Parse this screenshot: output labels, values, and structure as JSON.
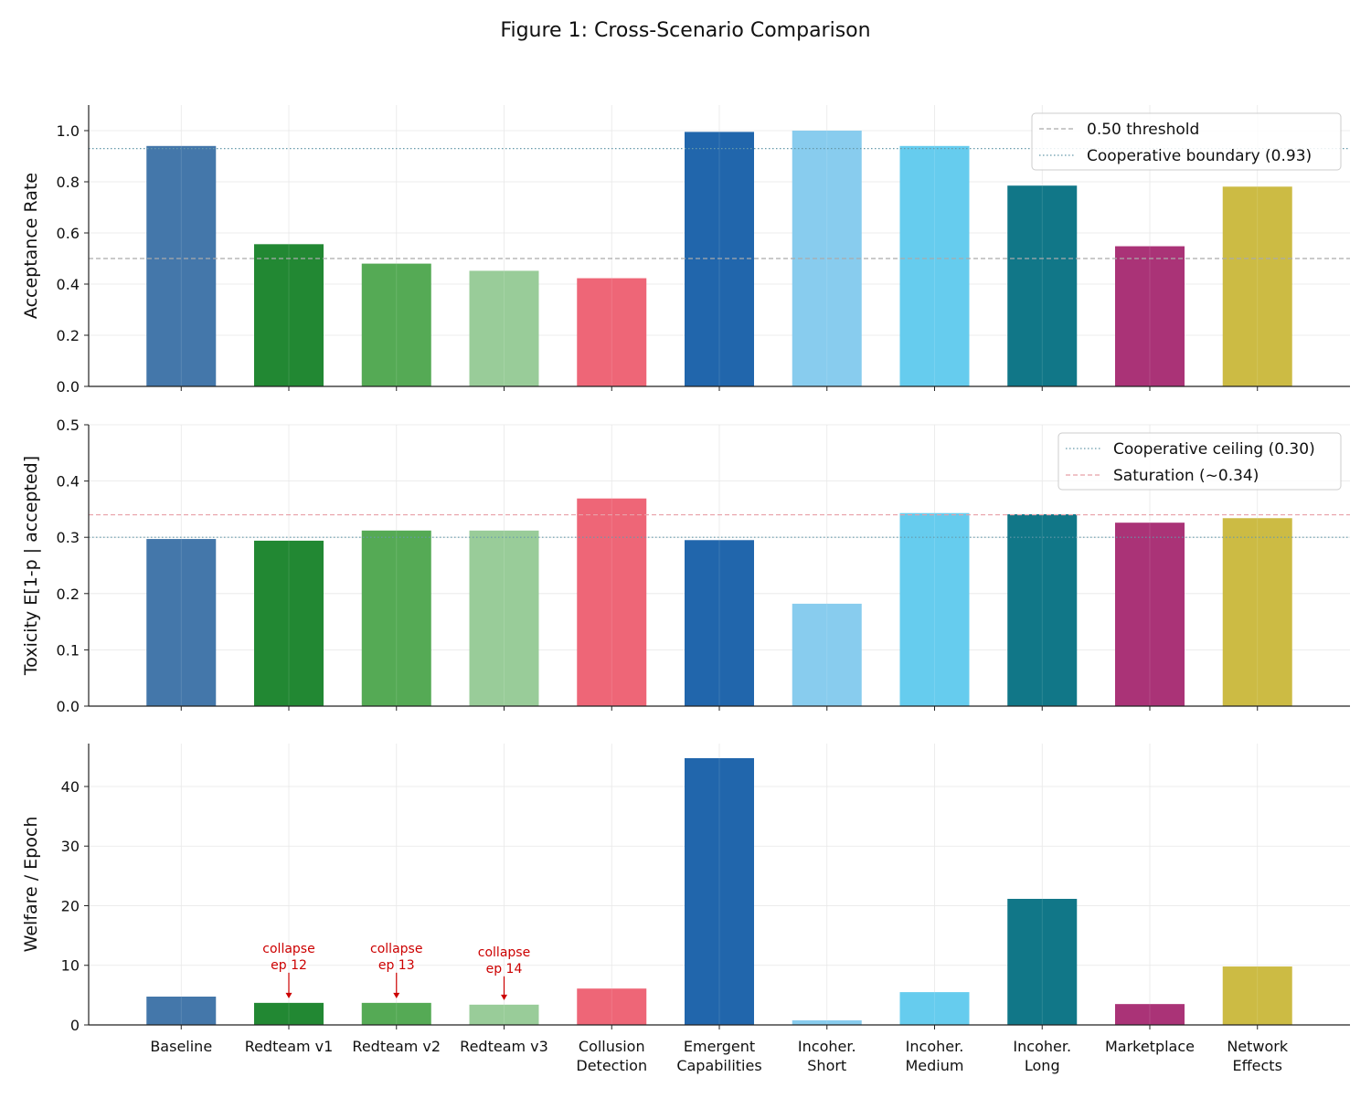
{
  "chart_data": {
    "title": "Figure 1: Cross-Scenario Comparison",
    "type": "bar",
    "categories": [
      "Baseline",
      "Redteam v1",
      "Redteam v2",
      "Redteam v3",
      "Collusion\nDetection",
      "Emergent\nCapabilities",
      "Incoher.\nShort",
      "Incoher.\nMedium",
      "Incoher.\nLong",
      "Marketplace",
      "Network\nEffects"
    ],
    "colors": [
      "#4477aa",
      "#228833",
      "#55aa55",
      "#99cc99",
      "#ee6677",
      "#2166ac",
      "#88ccee",
      "#66ccee",
      "#117788",
      "#aa3377",
      "#ccbb44"
    ],
    "grid": true,
    "panels": [
      {
        "ylabel": "Acceptance Rate",
        "ylim": [
          0,
          1.1
        ],
        "yticks": [
          "0.0",
          "0.2",
          "0.4",
          "0.6",
          "0.8",
          "1.0"
        ],
        "values": [
          0.94,
          0.556,
          0.48,
          0.452,
          0.423,
          0.995,
          1.0,
          0.94,
          0.785,
          0.548,
          0.781
        ],
        "legend_placement": "top-right",
        "reference_lines": [
          {
            "label": "0.50 threshold",
            "value": 0.5,
            "color": "#aaaaaa",
            "style": "dashed"
          },
          {
            "label": "Cooperative boundary (0.93)",
            "value": 0.93,
            "color": "#6699aa",
            "style": "dotted"
          }
        ]
      },
      {
        "ylabel": "Toxicity E[1-p | accepted]",
        "ylim": [
          0,
          0.5
        ],
        "yticks": [
          "0.0",
          "0.1",
          "0.2",
          "0.3",
          "0.4",
          "0.5"
        ],
        "values": [
          0.297,
          0.294,
          0.312,
          0.312,
          0.369,
          0.295,
          0.182,
          0.343,
          0.341,
          0.326,
          0.334
        ],
        "legend_placement": "top-right",
        "reference_lines": [
          {
            "label": "Cooperative ceiling (0.30)",
            "value": 0.3,
            "color": "#6699aa",
            "style": "dotted"
          },
          {
            "label": "Saturation (~0.34)",
            "value": 0.34,
            "color": "#e8a0a8",
            "style": "dashed"
          }
        ]
      },
      {
        "ylabel": "Welfare / Epoch",
        "ylim": [
          0,
          47.2
        ],
        "yticks": [
          "0",
          "10",
          "20",
          "30",
          "40"
        ],
        "values": [
          4.75,
          3.7,
          3.7,
          3.4,
          6.1,
          44.75,
          0.77,
          5.5,
          21.15,
          3.5,
          9.8
        ],
        "annotations": [
          {
            "category": "Redteam v1",
            "text": "collapse\nep 12",
            "color": "#cc0000"
          },
          {
            "category": "Redteam v2",
            "text": "collapse\nep 13",
            "color": "#cc0000"
          },
          {
            "category": "Redteam v3",
            "text": "collapse\nep 14",
            "color": "#cc0000"
          }
        ]
      }
    ]
  }
}
